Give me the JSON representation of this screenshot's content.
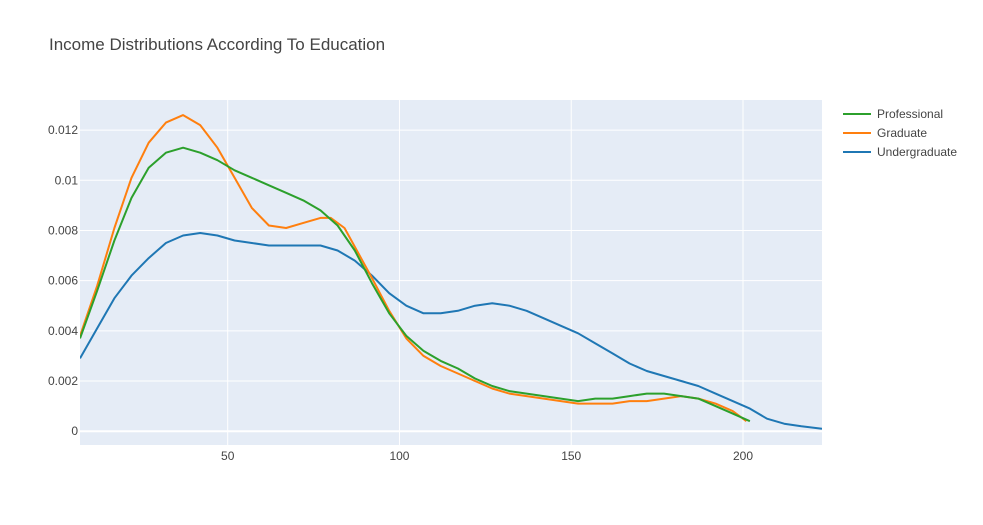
{
  "chart_data": {
    "type": "line",
    "title": "Income Distributions According To Education",
    "xlabel": "",
    "ylabel": "",
    "xlim": [
      7,
      223
    ],
    "ylim": [
      -0.00055,
      0.0132
    ],
    "xticks": [
      50,
      100,
      150,
      200
    ],
    "yticks": [
      0,
      0.002,
      0.004,
      0.006,
      0.008,
      0.01,
      0.012
    ],
    "ytick_labels": [
      "0",
      "0.002",
      "0.004",
      "0.006",
      "0.008",
      "0.01",
      "0.012"
    ],
    "grid": true,
    "legend_position": "top-right",
    "plot_bg": "#E5ECF6",
    "series": [
      {
        "name": "Professional",
        "color": "#2CA02C",
        "x": [
          7,
          12,
          17,
          22,
          27,
          32,
          37,
          42,
          47,
          52,
          57,
          62,
          67,
          72,
          77,
          82,
          87,
          92,
          97,
          102,
          107,
          112,
          117,
          122,
          127,
          132,
          137,
          142,
          147,
          152,
          157,
          162,
          167,
          172,
          177,
          182,
          187,
          192,
          197,
          202
        ],
        "y": [
          0.0037,
          0.0056,
          0.0076,
          0.0093,
          0.0105,
          0.0111,
          0.0113,
          0.0111,
          0.0108,
          0.0104,
          0.0101,
          0.0098,
          0.0095,
          0.0092,
          0.0088,
          0.0082,
          0.0072,
          0.0059,
          0.0047,
          0.0038,
          0.0032,
          0.0028,
          0.0025,
          0.0021,
          0.0018,
          0.0016,
          0.0015,
          0.0014,
          0.0013,
          0.0012,
          0.0013,
          0.0013,
          0.0014,
          0.0015,
          0.0015,
          0.0014,
          0.0013,
          0.001,
          0.0007,
          0.0004
        ]
      },
      {
        "name": "Graduate",
        "color": "#FF7F0E",
        "x": [
          7,
          12,
          17,
          22,
          27,
          32,
          37,
          42,
          47,
          52,
          57,
          62,
          67,
          72,
          77,
          80,
          84,
          88,
          92,
          97,
          102,
          107,
          112,
          117,
          122,
          127,
          132,
          137,
          142,
          147,
          152,
          157,
          162,
          167,
          172,
          177,
          182,
          187,
          192,
          197,
          201
        ],
        "y": [
          0.0038,
          0.0058,
          0.0081,
          0.0101,
          0.0115,
          0.0123,
          0.0126,
          0.0122,
          0.0113,
          0.0101,
          0.0089,
          0.0082,
          0.0081,
          0.0083,
          0.0085,
          0.0085,
          0.0081,
          0.0071,
          0.0061,
          0.0048,
          0.0037,
          0.003,
          0.0026,
          0.0023,
          0.002,
          0.0017,
          0.0015,
          0.0014,
          0.0013,
          0.0012,
          0.0011,
          0.0011,
          0.0011,
          0.0012,
          0.0012,
          0.0013,
          0.0014,
          0.0013,
          0.0011,
          0.0008,
          0.0004
        ]
      },
      {
        "name": "Undergraduate",
        "color": "#1F77B4",
        "x": [
          7,
          12,
          17,
          22,
          27,
          32,
          37,
          42,
          47,
          52,
          57,
          62,
          67,
          72,
          77,
          82,
          87,
          92,
          97,
          102,
          107,
          112,
          117,
          122,
          127,
          132,
          137,
          142,
          147,
          152,
          157,
          162,
          167,
          172,
          177,
          182,
          187,
          192,
          197,
          202,
          207,
          212,
          217,
          223
        ],
        "y": [
          0.0029,
          0.0041,
          0.0053,
          0.0062,
          0.0069,
          0.0075,
          0.0078,
          0.0079,
          0.0078,
          0.0076,
          0.0075,
          0.0074,
          0.0074,
          0.0074,
          0.0074,
          0.0072,
          0.0068,
          0.0062,
          0.0055,
          0.005,
          0.0047,
          0.0047,
          0.0048,
          0.005,
          0.0051,
          0.005,
          0.0048,
          0.0045,
          0.0042,
          0.0039,
          0.0035,
          0.0031,
          0.0027,
          0.0024,
          0.0022,
          0.002,
          0.0018,
          0.0015,
          0.0012,
          0.0009,
          0.0005,
          0.0003,
          0.0002,
          0.0001
        ]
      }
    ]
  }
}
